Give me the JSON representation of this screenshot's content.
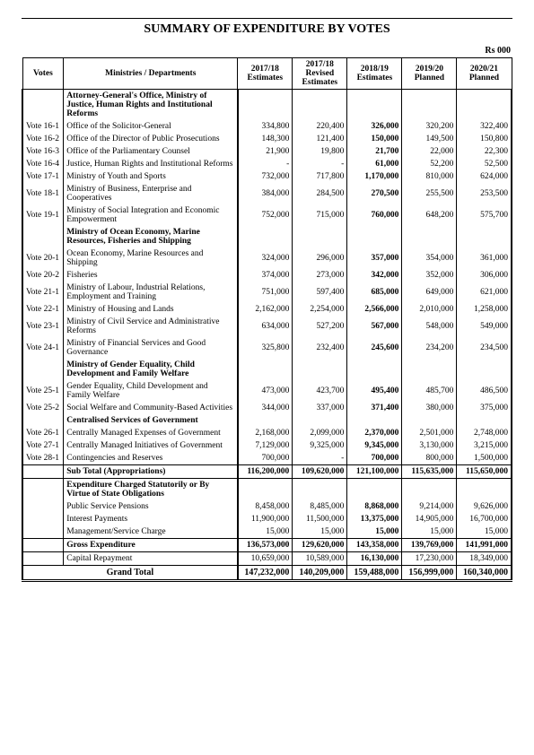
{
  "title": "SUMMARY OF EXPENDITURE BY VOTES",
  "unit": "Rs 000",
  "headers": {
    "votes": "Votes",
    "ministries": "Ministries / Departments",
    "c1": "2017/18 Estimates",
    "c2": "2017/18 Revised Estimates",
    "c3": "2018/19 Estimates",
    "c4": "2019/20 Planned",
    "c5": "2020/21 Planned"
  },
  "rows": [
    {
      "type": "section",
      "name": "Attorney-General's Office, Ministry of Justice, Human Rights and Institutional Reforms"
    },
    {
      "type": "data",
      "vote": "Vote 16-1",
      "name": "Office of the Solicitor-General",
      "v": [
        "334,800",
        "220,400",
        "326,000",
        "320,200",
        "322,400"
      ]
    },
    {
      "type": "data",
      "vote": "Vote 16-2",
      "name": "Office of the Director of Public Prosecutions",
      "v": [
        "148,300",
        "121,400",
        "150,000",
        "149,500",
        "150,800"
      ]
    },
    {
      "type": "data",
      "vote": "Vote 16-3",
      "name": "Office of the Parliamentary Counsel",
      "v": [
        "21,900",
        "19,800",
        "21,700",
        "22,000",
        "22,300"
      ]
    },
    {
      "type": "data",
      "vote": "Vote 16-4",
      "name": "Justice, Human Rights and Institutional Reforms",
      "v": [
        "-",
        "-",
        "61,000",
        "52,200",
        "52,500"
      ]
    },
    {
      "type": "data",
      "vote": "Vote 17-1",
      "name": "Ministry of Youth and Sports",
      "v": [
        "732,000",
        "717,800",
        "1,170,000",
        "810,000",
        "624,000"
      ]
    },
    {
      "type": "data",
      "vote": "Vote 18-1",
      "name": "Ministry of Business, Enterprise and Cooperatives",
      "v": [
        "384,000",
        "284,500",
        "270,500",
        "255,500",
        "253,500"
      ]
    },
    {
      "type": "data",
      "vote": "Vote 19-1",
      "name": "Ministry of Social Integration and Economic Empowerment",
      "v": [
        "752,000",
        "715,000",
        "760,000",
        "648,200",
        "575,700"
      ]
    },
    {
      "type": "section",
      "name": "Ministry of Ocean Economy, Marine Resources, Fisheries and Shipping"
    },
    {
      "type": "data",
      "vote": "Vote 20-1",
      "name": "Ocean Economy, Marine Resources and Shipping",
      "v": [
        "324,000",
        "296,000",
        "357,000",
        "354,000",
        "361,000"
      ]
    },
    {
      "type": "data",
      "vote": "Vote 20-2",
      "name": "Fisheries",
      "v": [
        "374,000",
        "273,000",
        "342,000",
        "352,000",
        "306,000"
      ]
    },
    {
      "type": "data",
      "vote": "Vote 21-1",
      "name": "Ministry of Labour, Industrial Relations, Employment and Training",
      "v": [
        "751,000",
        "597,400",
        "685,000",
        "649,000",
        "621,000"
      ]
    },
    {
      "type": "data",
      "vote": "Vote 22-1",
      "name": "Ministry of Housing and Lands",
      "v": [
        "2,162,000",
        "2,254,000",
        "2,566,000",
        "2,010,000",
        "1,258,000"
      ]
    },
    {
      "type": "data",
      "vote": "Vote 23-1",
      "name": "Ministry of Civil Service and Administrative Reforms",
      "v": [
        "634,000",
        "527,200",
        "567,000",
        "548,000",
        "549,000"
      ]
    },
    {
      "type": "data",
      "vote": "Vote 24-1",
      "name": "Ministry of Financial Services and Good Governance",
      "v": [
        "325,800",
        "232,400",
        "245,600",
        "234,200",
        "234,500"
      ]
    },
    {
      "type": "section",
      "name": "Ministry of Gender Equality, Child Development and Family Welfare"
    },
    {
      "type": "data",
      "vote": "Vote 25-1",
      "name": "Gender Equality, Child Development and Family Welfare",
      "v": [
        "473,000",
        "423,700",
        "495,400",
        "485,700",
        "486,500"
      ]
    },
    {
      "type": "data",
      "vote": "Vote 25-2",
      "name": "Social Welfare and Community-Based Activities",
      "v": [
        "344,000",
        "337,000",
        "371,400",
        "380,000",
        "375,000"
      ]
    },
    {
      "type": "section",
      "name": "Centralised Services of Government"
    },
    {
      "type": "data",
      "vote": "Vote 26-1",
      "name": "Centrally Managed Expenses of Government",
      "v": [
        "2,168,000",
        "2,099,000",
        "2,370,000",
        "2,501,000",
        "2,748,000"
      ]
    },
    {
      "type": "data",
      "vote": "Vote 27-1",
      "name": "Centrally Managed Initiatives of Government",
      "v": [
        "7,129,000",
        "9,325,000",
        "9,345,000",
        "3,130,000",
        "3,215,000"
      ]
    },
    {
      "type": "data",
      "vote": "Vote 28-1",
      "name": "Contingencies and Reserves",
      "v": [
        "700,000",
        "-",
        "700,000",
        "800,000",
        "1,500,000"
      ]
    }
  ],
  "subtotal": {
    "name": "Sub Total (Appropriations)",
    "v": [
      "116,200,000",
      "109,620,000",
      "121,100,000",
      "115,635,000",
      "115,650,000"
    ]
  },
  "statutory_header": "Expenditure Charged Statutorily or By Virtue of State Obligations",
  "statutory": [
    {
      "name": "Public Service Pensions",
      "v": [
        "8,458,000",
        "8,485,000",
        "8,868,000",
        "9,214,000",
        "9,626,000"
      ]
    },
    {
      "name": "Interest Payments",
      "v": [
        "11,900,000",
        "11,500,000",
        "13,375,000",
        "14,905,000",
        "16,700,000"
      ]
    },
    {
      "name": "Management/Service Charge",
      "v": [
        "15,000",
        "15,000",
        "15,000",
        "15,000",
        "15,000"
      ]
    }
  ],
  "gross": {
    "name": "Gross Expenditure",
    "v": [
      "136,573,000",
      "129,620,000",
      "143,358,000",
      "139,769,000",
      "141,991,000"
    ]
  },
  "capital": {
    "name": "Capital Repayment",
    "v": [
      "10,659,000",
      "10,589,000",
      "16,130,000",
      "17,230,000",
      "18,349,000"
    ]
  },
  "grand": {
    "name": "Grand Total",
    "v": [
      "147,232,000",
      "140,209,000",
      "159,488,000",
      "156,999,000",
      "160,340,000"
    ]
  }
}
